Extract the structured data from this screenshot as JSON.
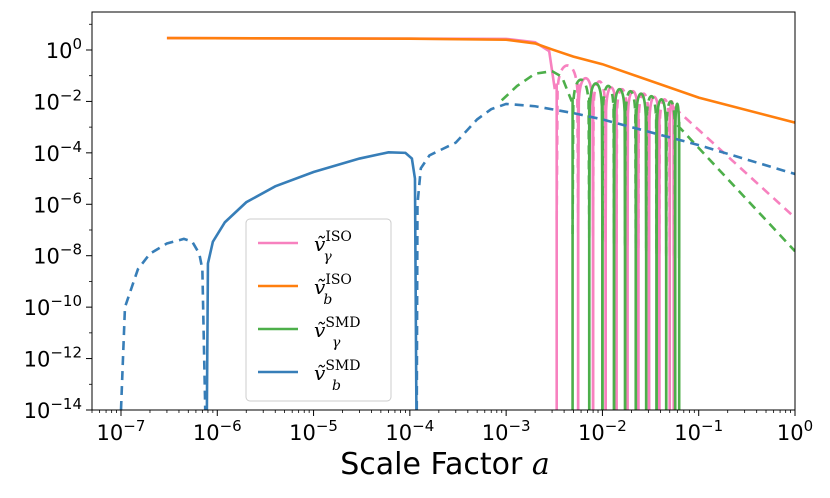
{
  "chart_data": {
    "type": "line",
    "xlabel": "Scale Factor",
    "xlabel_var": "a",
    "xscale": "log",
    "yscale": "log",
    "xlim": [
      5e-08,
      1
    ],
    "ylim": [
      1e-14,
      30
    ],
    "x_ticks": [
      {
        "base": "10",
        "exp": "−7"
      },
      {
        "base": "10",
        "exp": "−6"
      },
      {
        "base": "10",
        "exp": "−5"
      },
      {
        "base": "10",
        "exp": "−4"
      },
      {
        "base": "10",
        "exp": "−3"
      },
      {
        "base": "10",
        "exp": "−2"
      },
      {
        "base": "10",
        "exp": "−1"
      },
      {
        "base": "10",
        "exp": "0"
      }
    ],
    "y_ticks": [
      {
        "base": "10",
        "exp": "0"
      },
      {
        "base": "10",
        "exp": "−2"
      },
      {
        "base": "10",
        "exp": "−4"
      },
      {
        "base": "10",
        "exp": "−6"
      },
      {
        "base": "10",
        "exp": "−8"
      },
      {
        "base": "10",
        "exp": "−10"
      },
      {
        "base": "10",
        "exp": "−12"
      },
      {
        "base": "10",
        "exp": "−14"
      }
    ],
    "grid": false,
    "legend_position": "lower-center-left",
    "series": [
      {
        "name": "ṽ_γ^ISO",
        "legend": {
          "main": "ṽ",
          "sub": "γ",
          "sup": "ISO"
        },
        "color": "#f781bf",
        "note": "solid where positive, dashed where negative; oscillates after a≈3e-3",
        "points": [
          [
            3e-07,
            2.9
          ],
          [
            0.001,
            2.7
          ],
          [
            0.002,
            2.0
          ],
          [
            0.0028,
            0.9
          ],
          [
            0.0032,
            0.03
          ]
        ],
        "oscillations": [
          {
            "a_zero": 0.00335,
            "peak": 0.25,
            "a_peak": 0.004
          },
          {
            "a_zero": 0.0056,
            "peak": 0.08,
            "a_peak": 0.0066
          },
          {
            "a_zero": 0.008,
            "peak": 0.06,
            "a_peak": 0.0094
          },
          {
            "a_zero": 0.0108,
            "peak": 0.035,
            "a_peak": 0.0125
          },
          {
            "a_zero": 0.014,
            "peak": 0.03,
            "a_peak": 0.016
          },
          {
            "a_zero": 0.0182,
            "peak": 0.025,
            "a_peak": 0.021
          },
          {
            "a_zero": 0.0236,
            "peak": 0.02,
            "a_peak": 0.027
          },
          {
            "a_zero": 0.0305,
            "peak": 0.015,
            "a_peak": 0.034
          },
          {
            "a_zero": 0.039,
            "peak": 0.012,
            "a_peak": 0.044
          },
          {
            "a_zero": 0.05,
            "peak": 0.01,
            "a_peak": 0.055
          }
        ],
        "tail": [
          [
            0.055,
            0.006
          ],
          [
            1,
            3e-07
          ]
        ]
      },
      {
        "name": "ṽ_b^ISO",
        "legend": {
          "main": "ṽ",
          "sub": "b",
          "sup": "ISO"
        },
        "color": "#ff7f0e",
        "points": [
          [
            3e-07,
            2.9
          ],
          [
            0.0001,
            2.75
          ],
          [
            0.001,
            2.5
          ],
          [
            0.002,
            1.8
          ],
          [
            0.003,
            1.05
          ],
          [
            0.005,
            0.55
          ],
          [
            0.01,
            0.28
          ],
          [
            0.1,
            0.014
          ],
          [
            1,
            0.0015
          ]
        ]
      },
      {
        "name": "ṽ_γ^SMD",
        "legend": {
          "main": "ṽ",
          "sub": "γ",
          "sup": "SMD"
        },
        "color": "#4daf4a",
        "note": "dashed rise from 1e-3, then oscillates",
        "points": [
          [
            0.0009,
            0.011
          ],
          [
            0.0013,
            0.04
          ],
          [
            0.002,
            0.12
          ],
          [
            0.003,
            0.15
          ],
          [
            0.0038,
            0.09
          ],
          [
            0.0048,
            0.01
          ]
        ],
        "oscillations": [
          {
            "a_zero": 0.0049,
            "peak": 0.07,
            "a_peak": 0.006
          },
          {
            "a_zero": 0.0073,
            "peak": 0.05,
            "a_peak": 0.0085
          },
          {
            "a_zero": 0.01,
            "peak": 0.04,
            "a_peak": 0.0115
          },
          {
            "a_zero": 0.0132,
            "peak": 0.03,
            "a_peak": 0.015
          },
          {
            "a_zero": 0.0172,
            "peak": 0.025,
            "a_peak": 0.019
          },
          {
            "a_zero": 0.0222,
            "peak": 0.02,
            "a_peak": 0.025
          },
          {
            "a_zero": 0.0285,
            "peak": 0.016,
            "a_peak": 0.032
          },
          {
            "a_zero": 0.0365,
            "peak": 0.012,
            "a_peak": 0.041
          },
          {
            "a_zero": 0.046,
            "peak": 0.01,
            "a_peak": 0.051
          },
          {
            "a_zero": 0.057,
            "peak": 0.008,
            "a_peak": 0.06
          }
        ],
        "tail": [
          [
            0.06,
            0.0012
          ],
          [
            1,
            1.5e-08
          ]
        ]
      },
      {
        "name": "ṽ_b^SMD",
        "legend": {
          "main": "ṽ",
          "sub": "b",
          "sup": "SMD"
        },
        "color": "#377eb8",
        "segments": [
          {
            "style": "dashed",
            "points": [
              [
                1e-07,
                1e-14
              ],
              [
                1.1e-07,
                1e-10
              ],
              [
                1.5e-07,
                3e-09
              ],
              [
                2e-07,
                1.2e-08
              ],
              [
                3e-07,
                3e-08
              ],
              [
                4.5e-07,
                4.5e-08
              ],
              [
                5.5e-07,
                3.5e-08
              ],
              [
                6.5e-07,
                1.2e-08
              ],
              [
                7e-07,
                3e-09
              ],
              [
                7.5e-07,
                1e-14
              ]
            ]
          },
          {
            "style": "solid",
            "points": [
              [
                7.8e-07,
                1e-14
              ],
              [
                8e-07,
                5e-09
              ],
              [
                9e-07,
                3.5e-08
              ],
              [
                1.2e-06,
                2e-07
              ],
              [
                2e-06,
                1.2e-06
              ],
              [
                4e-06,
                5e-06
              ],
              [
                1e-05,
                1.8e-05
              ],
              [
                3e-05,
                6e-05
              ],
              [
                6e-05,
                0.000105
              ],
              [
                9e-05,
                0.0001
              ],
              [
                0.000105,
                6e-05
              ],
              [
                0.000113,
                1e-05
              ],
              [
                0.000117,
                1e-14
              ]
            ]
          },
          {
            "style": "dashed",
            "points": [
              [
                0.000118,
                1e-14
              ],
              [
                0.00012,
                1e-06
              ],
              [
                0.00013,
                2.5e-05
              ],
              [
                0.00016,
                8e-05
              ],
              [
                0.0002,
                0.00012
              ],
              [
                0.0003,
                0.00025
              ],
              [
                0.0005,
                0.002
              ],
              [
                0.0007,
                0.005
              ],
              [
                0.001,
                0.008
              ],
              [
                0.002,
                0.0065
              ],
              [
                0.005,
                0.0035
              ],
              [
                0.01,
                0.002
              ],
              [
                0.1,
                0.0002
              ],
              [
                1,
                1.5e-05
              ]
            ]
          }
        ]
      }
    ]
  }
}
